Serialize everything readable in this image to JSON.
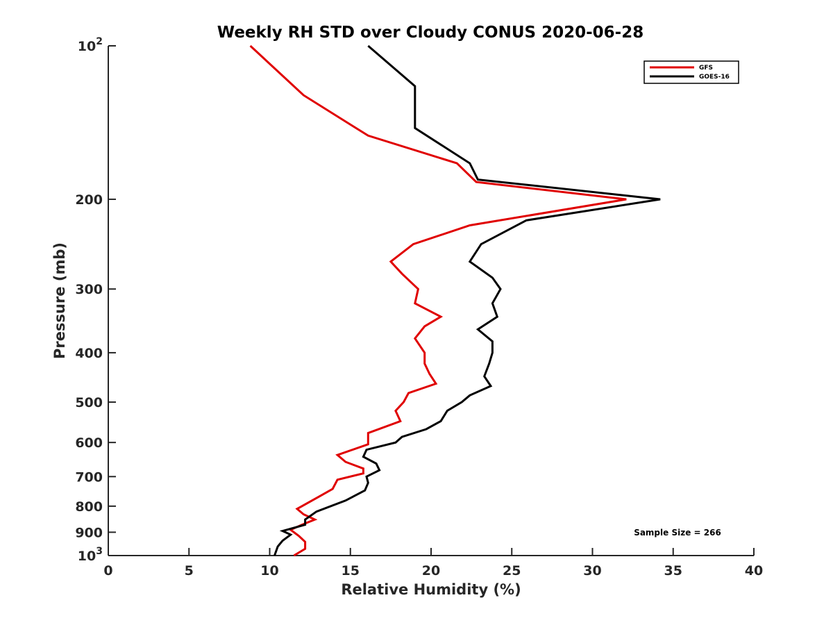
{
  "chart_data": {
    "type": "line",
    "title": "Weekly RH STD over Cloudy CONUS 2020-06-28",
    "xlabel": "Relative Humidity (%)",
    "ylabel": "Pressure (mb)",
    "xlim": [
      0,
      40
    ],
    "ylim": [
      100,
      1000
    ],
    "y_scale": "log",
    "y_reversed": true,
    "grid": false,
    "legend_position": "top-right",
    "x_ticks": [
      0,
      5,
      10,
      15,
      20,
      25,
      30,
      35,
      40
    ],
    "y_ticks": [
      {
        "value": 100,
        "label": "10",
        "exponent": "2"
      },
      {
        "value": 200,
        "label": "200"
      },
      {
        "value": 300,
        "label": "300"
      },
      {
        "value": 400,
        "label": "400"
      },
      {
        "value": 500,
        "label": "500"
      },
      {
        "value": 600,
        "label": "600"
      },
      {
        "value": 700,
        "label": "700"
      },
      {
        "value": 800,
        "label": "800"
      },
      {
        "value": 900,
        "label": "900"
      },
      {
        "value": 1000,
        "label": "10",
        "exponent": "3"
      }
    ],
    "annotation": "Sample Size = 266",
    "series": [
      {
        "name": "GFS",
        "color": "#e00000",
        "points": [
          [
            8.8,
            100
          ],
          [
            12.1,
            125
          ],
          [
            16.1,
            150
          ],
          [
            21.6,
            170
          ],
          [
            22.8,
            185
          ],
          [
            32.1,
            200
          ],
          [
            22.4,
            225
          ],
          [
            18.9,
            245
          ],
          [
            17.5,
            265
          ],
          [
            18.2,
            280
          ],
          [
            19.2,
            300
          ],
          [
            19.0,
            320
          ],
          [
            20.6,
            340
          ],
          [
            19.6,
            355
          ],
          [
            19.0,
            375
          ],
          [
            19.6,
            400
          ],
          [
            19.6,
            420
          ],
          [
            19.9,
            440
          ],
          [
            20.3,
            460
          ],
          [
            18.6,
            480
          ],
          [
            18.3,
            500
          ],
          [
            17.8,
            520
          ],
          [
            18.1,
            545
          ],
          [
            16.1,
            575
          ],
          [
            16.1,
            605
          ],
          [
            14.2,
            635
          ],
          [
            14.7,
            655
          ],
          [
            15.8,
            675
          ],
          [
            15.8,
            690
          ],
          [
            14.2,
            710
          ],
          [
            13.9,
            740
          ],
          [
            13.1,
            765
          ],
          [
            11.7,
            810
          ],
          [
            12.1,
            830
          ],
          [
            12.8,
            850
          ],
          [
            12.0,
            870
          ],
          [
            11.3,
            890
          ],
          [
            11.8,
            915
          ],
          [
            12.2,
            940
          ],
          [
            12.2,
            970
          ],
          [
            11.5,
            1000
          ]
        ]
      },
      {
        "name": "GOES-16",
        "color": "#000000",
        "points": [
          [
            16.1,
            100
          ],
          [
            19.0,
            120
          ],
          [
            19.0,
            145
          ],
          [
            22.4,
            170
          ],
          [
            22.9,
            183
          ],
          [
            34.2,
            200
          ],
          [
            25.9,
            220
          ],
          [
            23.1,
            245
          ],
          [
            22.4,
            265
          ],
          [
            23.8,
            285
          ],
          [
            24.3,
            300
          ],
          [
            23.8,
            320
          ],
          [
            24.1,
            340
          ],
          [
            22.9,
            360
          ],
          [
            23.8,
            380
          ],
          [
            23.8,
            400
          ],
          [
            23.6,
            420
          ],
          [
            23.3,
            445
          ],
          [
            23.7,
            465
          ],
          [
            22.4,
            485
          ],
          [
            21.9,
            500
          ],
          [
            21.0,
            520
          ],
          [
            20.6,
            545
          ],
          [
            19.7,
            565
          ],
          [
            18.2,
            585
          ],
          [
            17.8,
            600
          ],
          [
            16.0,
            620
          ],
          [
            15.8,
            640
          ],
          [
            16.6,
            660
          ],
          [
            16.8,
            680
          ],
          [
            16.0,
            700
          ],
          [
            16.1,
            720
          ],
          [
            15.9,
            745
          ],
          [
            14.7,
            780
          ],
          [
            12.9,
            820
          ],
          [
            12.2,
            850
          ],
          [
            12.2,
            870
          ],
          [
            10.8,
            895
          ],
          [
            11.3,
            910
          ],
          [
            10.8,
            935
          ],
          [
            10.5,
            960
          ],
          [
            10.3,
            1000
          ]
        ]
      }
    ]
  }
}
